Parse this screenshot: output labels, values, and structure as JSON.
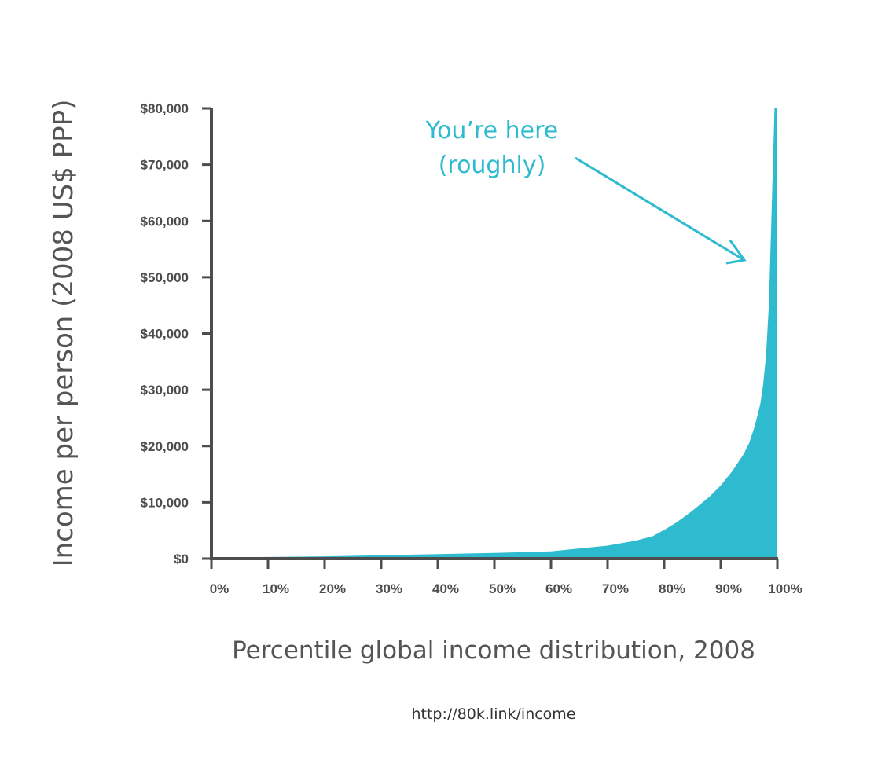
{
  "chart_data": {
    "type": "area",
    "xlabel": "Percentile global income distribution, 2008",
    "ylabel": "Income per person (2008 US$ PPP)",
    "x_ticks": [
      "0%",
      "10%",
      "20%",
      "30%",
      "40%",
      "50%",
      "60%",
      "70%",
      "80%",
      "90%",
      "100%"
    ],
    "y_ticks": [
      "$0",
      "$10,000",
      "$20,000",
      "$30,000",
      "$40,000",
      "$50,000",
      "$60,000",
      "$70,000",
      "$80,000"
    ],
    "xlim": [
      0,
      100
    ],
    "ylim": [
      0,
      80000
    ],
    "grid": false,
    "x": [
      0,
      10,
      20,
      30,
      40,
      50,
      60,
      70,
      75,
      78,
      80,
      82,
      85,
      88,
      90,
      92,
      94,
      95,
      96,
      97,
      97.5,
      98,
      98.5,
      99,
      99.5,
      100
    ],
    "y": [
      200,
      300,
      400,
      600,
      800,
      1000,
      1300,
      2300,
      3200,
      4000,
      5100,
      6300,
      8500,
      11000,
      13000,
      15500,
      18500,
      20500,
      23500,
      27500,
      31000,
      36000,
      45000,
      62000,
      80000,
      80000
    ],
    "color": "#2ebbcf",
    "annotation": {
      "lines": [
        "You’re here",
        "(roughly)"
      ],
      "color": "#2ebbcf"
    },
    "source": "http://80k.link/income"
  }
}
